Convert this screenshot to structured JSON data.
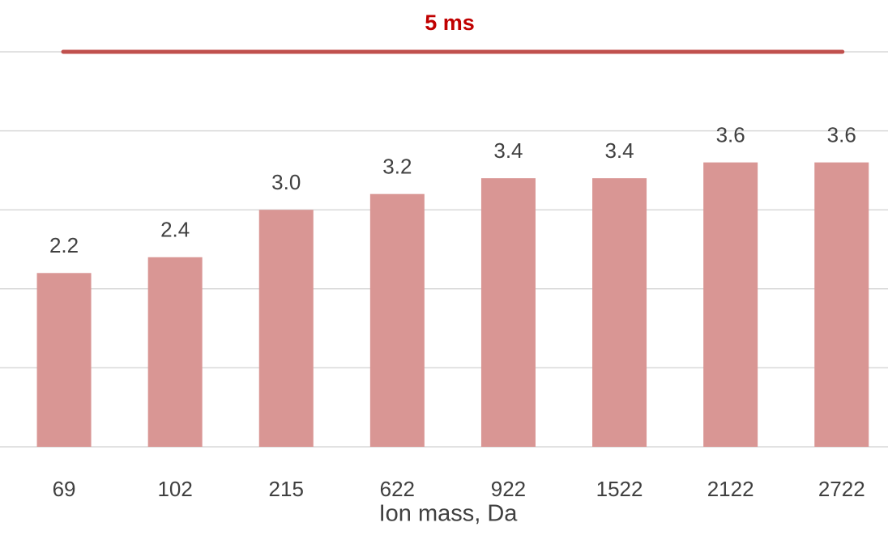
{
  "chart_data": {
    "type": "bar",
    "x_label": "Ion mass, Da",
    "categories": [
      "69",
      "102",
      "215",
      "622",
      "922",
      "1522",
      "2122",
      "2722"
    ],
    "values": [
      2.2,
      2.4,
      3.0,
      3.2,
      3.4,
      3.4,
      3.6,
      3.6
    ],
    "value_labels": [
      "2.2",
      "2.4",
      "3.0",
      "3.2",
      "3.4",
      "3.4",
      "3.6",
      "3.6"
    ],
    "color": "#d99694",
    "ylim": [
      0,
      5
    ],
    "yticks": [
      0,
      1,
      2,
      3,
      4,
      5
    ],
    "grid": true,
    "reference_line": {
      "value": 5,
      "label": "5 ms",
      "color": "#c0504d"
    }
  }
}
